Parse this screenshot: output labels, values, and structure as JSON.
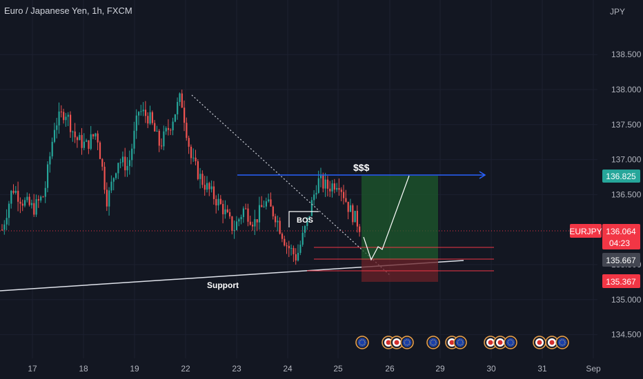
{
  "header": {
    "symbol_title": "Euro / Japanese Yen, 1h, FXCM"
  },
  "price_axis": {
    "currency": "JPY",
    "ticks": [
      "138.500",
      "138.000",
      "137.500",
      "137.000",
      "136.500",
      "135.500",
      "135.000",
      "134.500"
    ]
  },
  "time_axis": {
    "ticks": [
      "17",
      "18",
      "19",
      "22",
      "23",
      "24",
      "25",
      "26",
      "29",
      "30",
      "31",
      "Sep"
    ]
  },
  "markers": {
    "last_price_symbol": "EURJPY",
    "last_price": "136.064",
    "countdown": "04:23",
    "target_price": "136.825",
    "entry_price": "135.667",
    "stop_price": "135.367"
  },
  "annotations": {
    "liquidity": "$$$",
    "bos": "BOS",
    "support": "Support"
  },
  "colors": {
    "background": "#131722",
    "up": "#26a69a",
    "down": "#ef5350",
    "target_line": "#2962ff",
    "target_tag": "#26a69a",
    "last_tag": "#f23645",
    "entry_tag": "#434651",
    "stop_tag": "#f23645"
  },
  "chart_data": {
    "type": "candlestick",
    "symbol": "EURJPY",
    "timeframe": "1h",
    "ylim": [
      134.3,
      138.75
    ],
    "x_ticks": [
      "17",
      "18",
      "19",
      "22",
      "23",
      "24",
      "25",
      "26",
      "29",
      "30",
      "31",
      "Sep"
    ],
    "close_path": [
      136.0,
      136.6,
      136.4,
      136.3,
      136.5,
      137.5,
      137.7,
      137.3,
      137.2,
      137.4,
      136.4,
      137.0,
      136.9,
      137.7,
      137.6,
      137.2,
      137.5,
      137.9,
      137.0,
      136.7,
      136.5,
      136.3,
      136.0,
      136.3,
      136.1,
      136.4,
      136.2,
      135.8,
      135.6,
      136.1,
      136.7,
      136.6,
      136.7,
      136.3,
      136.05
    ],
    "levels": {
      "last": 136.064,
      "target": 136.825,
      "entry": 135.667,
      "stop": 135.367,
      "bos": 136.3,
      "line_a": 135.85,
      "line_b": 135.5
    }
  }
}
